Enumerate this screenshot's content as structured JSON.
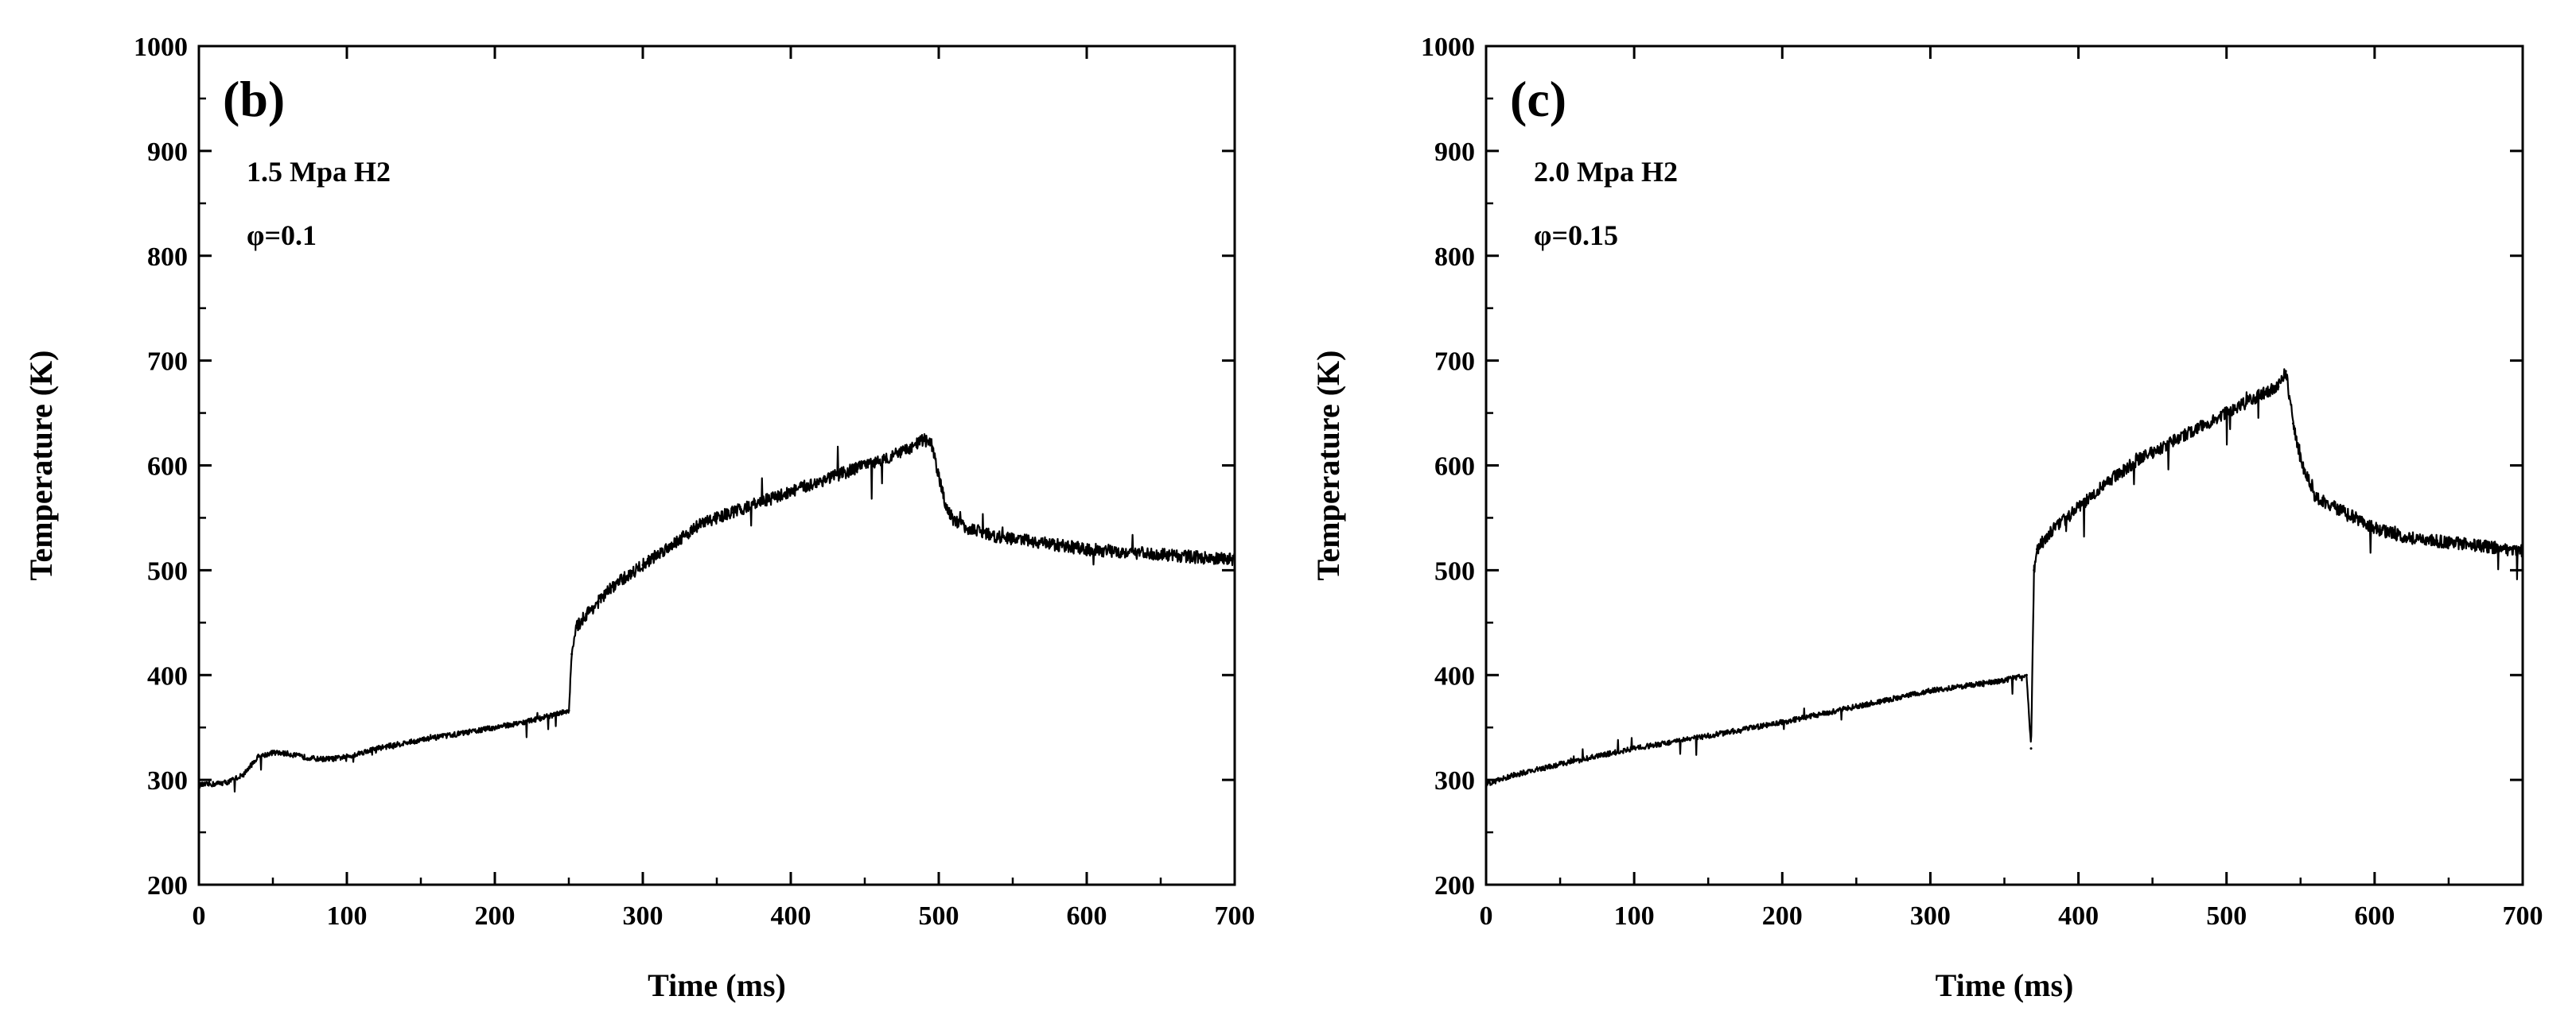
{
  "chart_data": [
    {
      "type": "line",
      "panel_label": "(b)",
      "annotations": [
        "1.5 Mpa H2",
        "φ=0.1"
      ],
      "xlabel": "Time (ms)",
      "ylabel": "Temperature (K)",
      "xlim": [
        0,
        700
      ],
      "ylim": [
        200,
        1000
      ],
      "xticks": [
        0,
        100,
        200,
        300,
        400,
        500,
        600,
        700
      ],
      "yticks": [
        200,
        300,
        400,
        500,
        600,
        700,
        800,
        900,
        1000
      ],
      "grid": false,
      "series": [
        {
          "name": "Temperature",
          "x": [
            0,
            10,
            20,
            30,
            40,
            50,
            60,
            70,
            80,
            90,
            100,
            120,
            150,
            180,
            200,
            220,
            240,
            250,
            252,
            255,
            260,
            270,
            280,
            290,
            300,
            320,
            340,
            360,
            380,
            400,
            420,
            440,
            460,
            480,
            490,
            495,
            500,
            505,
            510,
            520,
            540,
            560,
            580,
            600,
            620,
            640,
            660,
            680,
            700
          ],
          "y": [
            295,
            296,
            298,
            305,
            322,
            326,
            325,
            322,
            320,
            320,
            322,
            330,
            338,
            345,
            350,
            355,
            362,
            366,
            420,
            445,
            455,
            470,
            485,
            495,
            505,
            525,
            545,
            555,
            565,
            575,
            585,
            595,
            605,
            615,
            625,
            620,
            590,
            560,
            548,
            540,
            532,
            528,
            524,
            520,
            518,
            516,
            514,
            512,
            510
          ]
        }
      ]
    },
    {
      "type": "line",
      "panel_label": "(c)",
      "annotations": [
        "2.0 Mpa H2",
        "φ=0.15"
      ],
      "xlabel": "Time (ms)",
      "ylabel": "Temperature (K)",
      "xlim": [
        0,
        700
      ],
      "ylim": [
        200,
        1000
      ],
      "xticks": [
        0,
        100,
        200,
        300,
        400,
        500,
        600,
        700
      ],
      "yticks": [
        200,
        300,
        400,
        500,
        600,
        700,
        800,
        900,
        1000
      ],
      "grid": false,
      "series": [
        {
          "name": "Temperature",
          "x": [
            0,
            20,
            50,
            100,
            150,
            200,
            250,
            300,
            350,
            365,
            368,
            370,
            372,
            380,
            400,
            420,
            440,
            460,
            480,
            500,
            520,
            535,
            540,
            545,
            550,
            560,
            580,
            600,
            620,
            640,
            660,
            680,
            700
          ],
          "y": [
            296,
            305,
            315,
            330,
            342,
            355,
            370,
            385,
            395,
            400,
            330,
            500,
            520,
            535,
            560,
            585,
            605,
            620,
            635,
            650,
            665,
            675,
            690,
            640,
            605,
            570,
            555,
            540,
            532,
            528,
            525,
            522,
            518
          ]
        }
      ]
    }
  ]
}
